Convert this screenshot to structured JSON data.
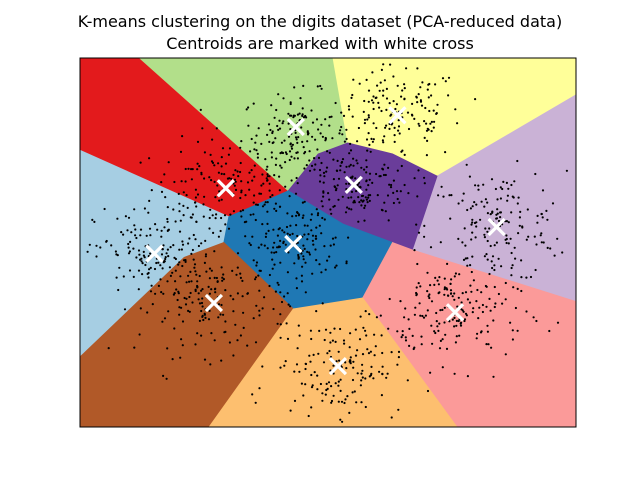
{
  "chart_data": {
    "type": "scatter",
    "title": "K-means clustering on the digits dataset (PCA-reduced data)",
    "subtitle": "Centroids are marked with white cross",
    "xlabel": "",
    "ylabel": "",
    "xlim": [
      0,
      100
    ],
    "ylim": [
      0,
      100
    ],
    "show_ticks": false,
    "grid": false,
    "point_color": "#000000",
    "centroid_color": "#ffffff",
    "regions": [
      {
        "name": "top-left",
        "color": "#e31a1c",
        "polygon": [
          [
            0,
            100
          ],
          [
            12,
            100
          ],
          [
            42,
            64
          ],
          [
            30,
            57
          ],
          [
            0,
            75
          ]
        ]
      },
      {
        "name": "top-middle",
        "color": "#b2df8a",
        "polygon": [
          [
            12,
            100
          ],
          [
            51,
            100
          ],
          [
            54,
            77
          ],
          [
            48,
            74
          ],
          [
            42,
            64
          ]
        ]
      },
      {
        "name": "top-right",
        "color": "#ffff99",
        "polygon": [
          [
            51,
            100
          ],
          [
            100,
            100
          ],
          [
            100,
            90
          ],
          [
            72,
            68
          ],
          [
            63,
            74
          ],
          [
            54,
            77
          ]
        ]
      },
      {
        "name": "right",
        "color": "#cab2d6",
        "polygon": [
          [
            100,
            90
          ],
          [
            100,
            34
          ],
          [
            67,
            48
          ],
          [
            72,
            68
          ]
        ]
      },
      {
        "name": "center-upper",
        "color": "#6a3d9a",
        "polygon": [
          [
            42,
            64
          ],
          [
            48,
            74
          ],
          [
            54,
            77
          ],
          [
            63,
            74
          ],
          [
            72,
            68
          ],
          [
            67,
            48
          ],
          [
            63,
            50
          ],
          [
            53,
            55
          ]
        ]
      },
      {
        "name": "left",
        "color": "#a6cee3",
        "polygon": [
          [
            0,
            75
          ],
          [
            30,
            57
          ],
          [
            29,
            50
          ],
          [
            21,
            46
          ],
          [
            0,
            19
          ]
        ]
      },
      {
        "name": "center",
        "color": "#1f78b4",
        "polygon": [
          [
            30,
            57
          ],
          [
            42,
            64
          ],
          [
            53,
            55
          ],
          [
            63,
            50
          ],
          [
            57,
            35
          ],
          [
            43,
            32
          ],
          [
            29,
            50
          ]
        ]
      },
      {
        "name": "bottom-left",
        "color": "#b15928",
        "polygon": [
          [
            0,
            19
          ],
          [
            21,
            46
          ],
          [
            29,
            50
          ],
          [
            43,
            32
          ],
          [
            26,
            0
          ],
          [
            0,
            0
          ]
        ]
      },
      {
        "name": "bottom-right",
        "color": "#fb9a99",
        "polygon": [
          [
            63,
            50
          ],
          [
            67,
            48
          ],
          [
            100,
            34
          ],
          [
            100,
            0
          ],
          [
            76,
            0
          ],
          [
            57,
            35
          ]
        ]
      },
      {
        "name": "bottom-middle",
        "color": "#fdbf6f",
        "polygon": [
          [
            43,
            32
          ],
          [
            57,
            35
          ],
          [
            76,
            0
          ],
          [
            26,
            0
          ]
        ]
      }
    ],
    "clusters": [
      {
        "center": [
          29.4,
          64.7
        ],
        "spread": [
          7.5,
          6.5
        ],
        "count": 160
      },
      {
        "center": [
          43.5,
          79.6
        ],
        "spread": [
          5.5,
          5.5
        ],
        "count": 150
      },
      {
        "center": [
          64,
          84.5
        ],
        "spread": [
          6.5,
          6.5
        ],
        "count": 150
      },
      {
        "center": [
          84,
          54.2
        ],
        "spread": [
          7,
          7.5
        ],
        "count": 160
      },
      {
        "center": [
          55.2,
          65.6
        ],
        "spread": [
          6,
          5
        ],
        "count": 150
      },
      {
        "center": [
          15,
          46.6
        ],
        "spread": [
          6,
          6.5
        ],
        "count": 140
      },
      {
        "center": [
          43,
          49.6
        ],
        "spread": [
          5,
          5
        ],
        "count": 130
      },
      {
        "center": [
          27,
          33.6
        ],
        "spread": [
          7.5,
          7
        ],
        "count": 160
      },
      {
        "center": [
          75.6,
          31.1
        ],
        "spread": [
          7,
          7
        ],
        "count": 170
      },
      {
        "center": [
          52,
          16.5
        ],
        "spread": [
          6.5,
          6.5
        ],
        "count": 160
      }
    ],
    "centroids": [
      [
        29.4,
        64.7
      ],
      [
        43.5,
        81.3
      ],
      [
        64,
        84.5
      ],
      [
        84,
        54.2
      ],
      [
        55.2,
        65.6
      ],
      [
        15,
        47
      ],
      [
        43,
        49.6
      ],
      [
        27,
        33.6
      ],
      [
        75.6,
        31.1
      ],
      [
        52,
        16.5
      ]
    ]
  }
}
